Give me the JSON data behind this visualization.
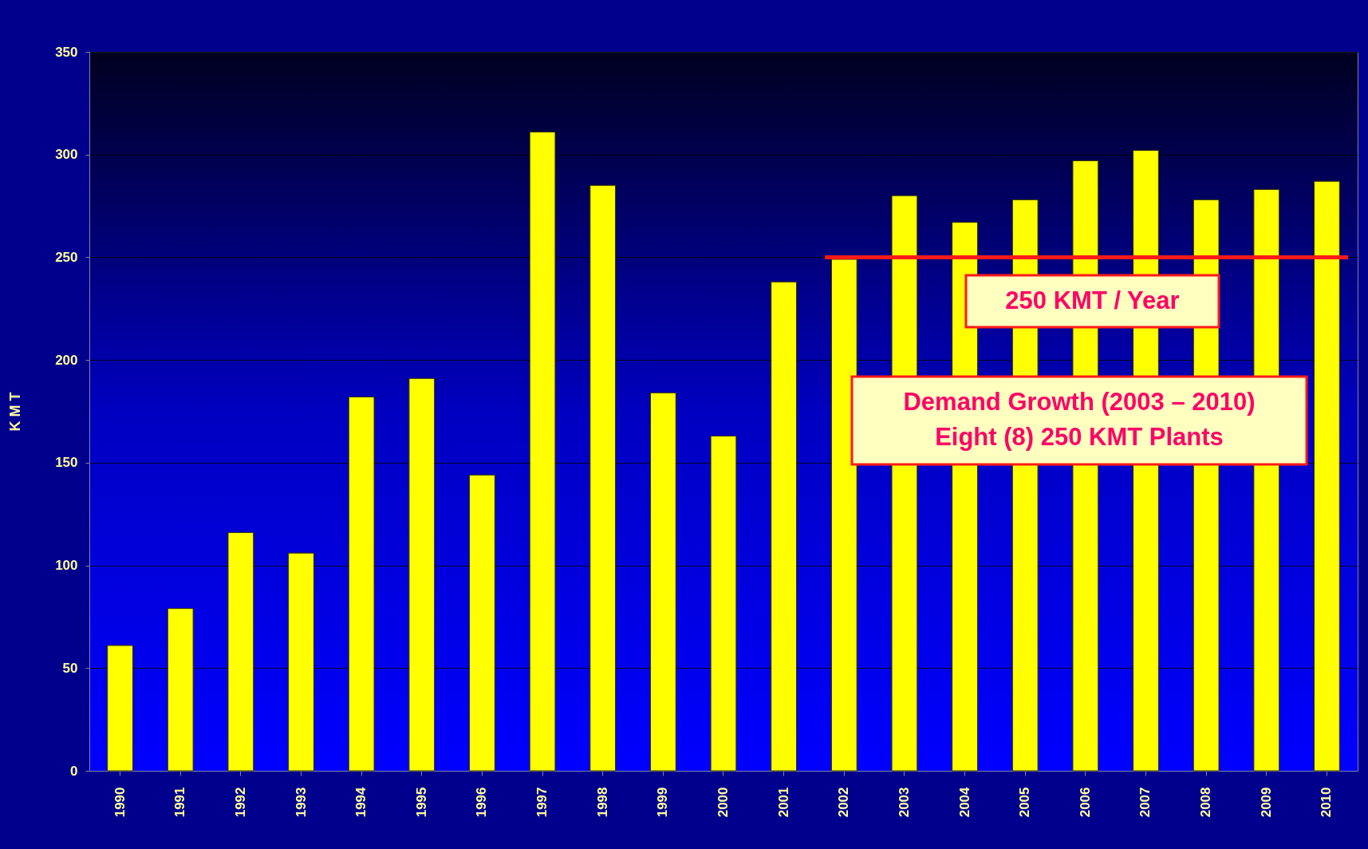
{
  "chart_data": {
    "type": "bar",
    "ylabel": "K M T",
    "categories": [
      "1990",
      "1991",
      "1992",
      "1993",
      "1994",
      "1995",
      "1996",
      "1997",
      "1998",
      "1999",
      "2000",
      "2001",
      "2002",
      "2003",
      "2004",
      "2005",
      "2006",
      "2007",
      "2008",
      "2009",
      "2010"
    ],
    "values": [
      61,
      79,
      116,
      106,
      182,
      191,
      144,
      311,
      285,
      184,
      163,
      238,
      249,
      280,
      267,
      278,
      297,
      302,
      278,
      283,
      287
    ],
    "color": "#ffff00",
    "ylim": [
      0,
      350
    ],
    "yticks": [
      0,
      50,
      100,
      150,
      200,
      250,
      300,
      350
    ],
    "grid": "y",
    "ref_lines": [
      {
        "axis": "y",
        "value": 250,
        "label": "250 KMT / Year",
        "color": "#ff1a1a"
      }
    ],
    "annotations": [
      "Demand Growth (2003 – 2010)\nEight (8) 250 KMT Plants"
    ]
  }
}
